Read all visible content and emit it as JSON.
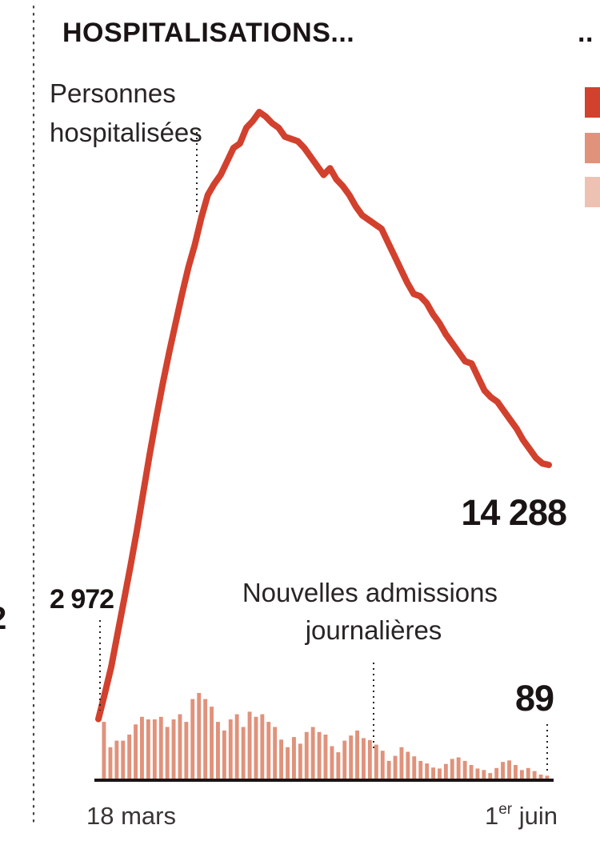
{
  "chart_data": {
    "type": "bar+line",
    "title": "HOSPITALISATIONS...",
    "title_right_fragment": "..",
    "left_edge_fragment": "2",
    "colors": {
      "line": "#d2412d",
      "bars": "#e0927b",
      "bars_light": "#eec2b2",
      "text": "#1a1414"
    },
    "x_labels": {
      "start": "18 mars",
      "end_prefix": "1",
      "end_sup": "er",
      "end_suffix": " juin"
    },
    "series": [
      {
        "name": "Personnes hospitalisées",
        "label_lines": [
          "Personnes",
          "hospitalisées"
        ],
        "start_label": "2 972",
        "end_label": "14 288",
        "start_value": 2972,
        "end_value": 14288,
        "values": [
          2972,
          4100,
          5300,
          6800,
          8300,
          9800,
          11400,
          13100,
          14800,
          16400,
          17900,
          19300,
          20600,
          21900,
          23100,
          24100,
          25300,
          26300,
          26800,
          27200,
          27800,
          28400,
          28600,
          29300,
          29600,
          30000,
          29800,
          29500,
          29300,
          28900,
          28800,
          28700,
          28400,
          28000,
          27600,
          27200,
          27500,
          27000,
          26700,
          26300,
          25800,
          25400,
          25200,
          25000,
          24800,
          24200,
          23600,
          23000,
          22400,
          21900,
          21800,
          21500,
          21000,
          20600,
          20100,
          19700,
          19300,
          18900,
          18800,
          18200,
          17600,
          17300,
          17100,
          16700,
          16300,
          15900,
          15400,
          15000,
          14600,
          14350,
          14288
        ]
      },
      {
        "name": "Nouvelles admissions journalières",
        "label_lines": [
          "Nouvelles admissions",
          "journalières"
        ],
        "end_label": "89",
        "end_value": 89,
        "values": [
          1150,
          650,
          780,
          780,
          900,
          1100,
          1250,
          1200,
          1200,
          1250,
          1050,
          1200,
          1300,
          1150,
          1600,
          1720,
          1600,
          1450,
          1150,
          980,
          1200,
          1300,
          1050,
          1350,
          1250,
          1300,
          1150,
          1050,
          800,
          650,
          850,
          720,
          950,
          1050,
          950,
          900,
          670,
          550,
          780,
          880,
          980,
          830,
          790,
          700,
          580,
          380,
          480,
          650,
          560,
          470,
          380,
          330,
          250,
          230,
          320,
          420,
          450,
          380,
          300,
          230,
          200,
          140,
          240,
          360,
          390,
          300,
          200,
          240,
          180,
          110,
          89
        ]
      }
    ]
  }
}
